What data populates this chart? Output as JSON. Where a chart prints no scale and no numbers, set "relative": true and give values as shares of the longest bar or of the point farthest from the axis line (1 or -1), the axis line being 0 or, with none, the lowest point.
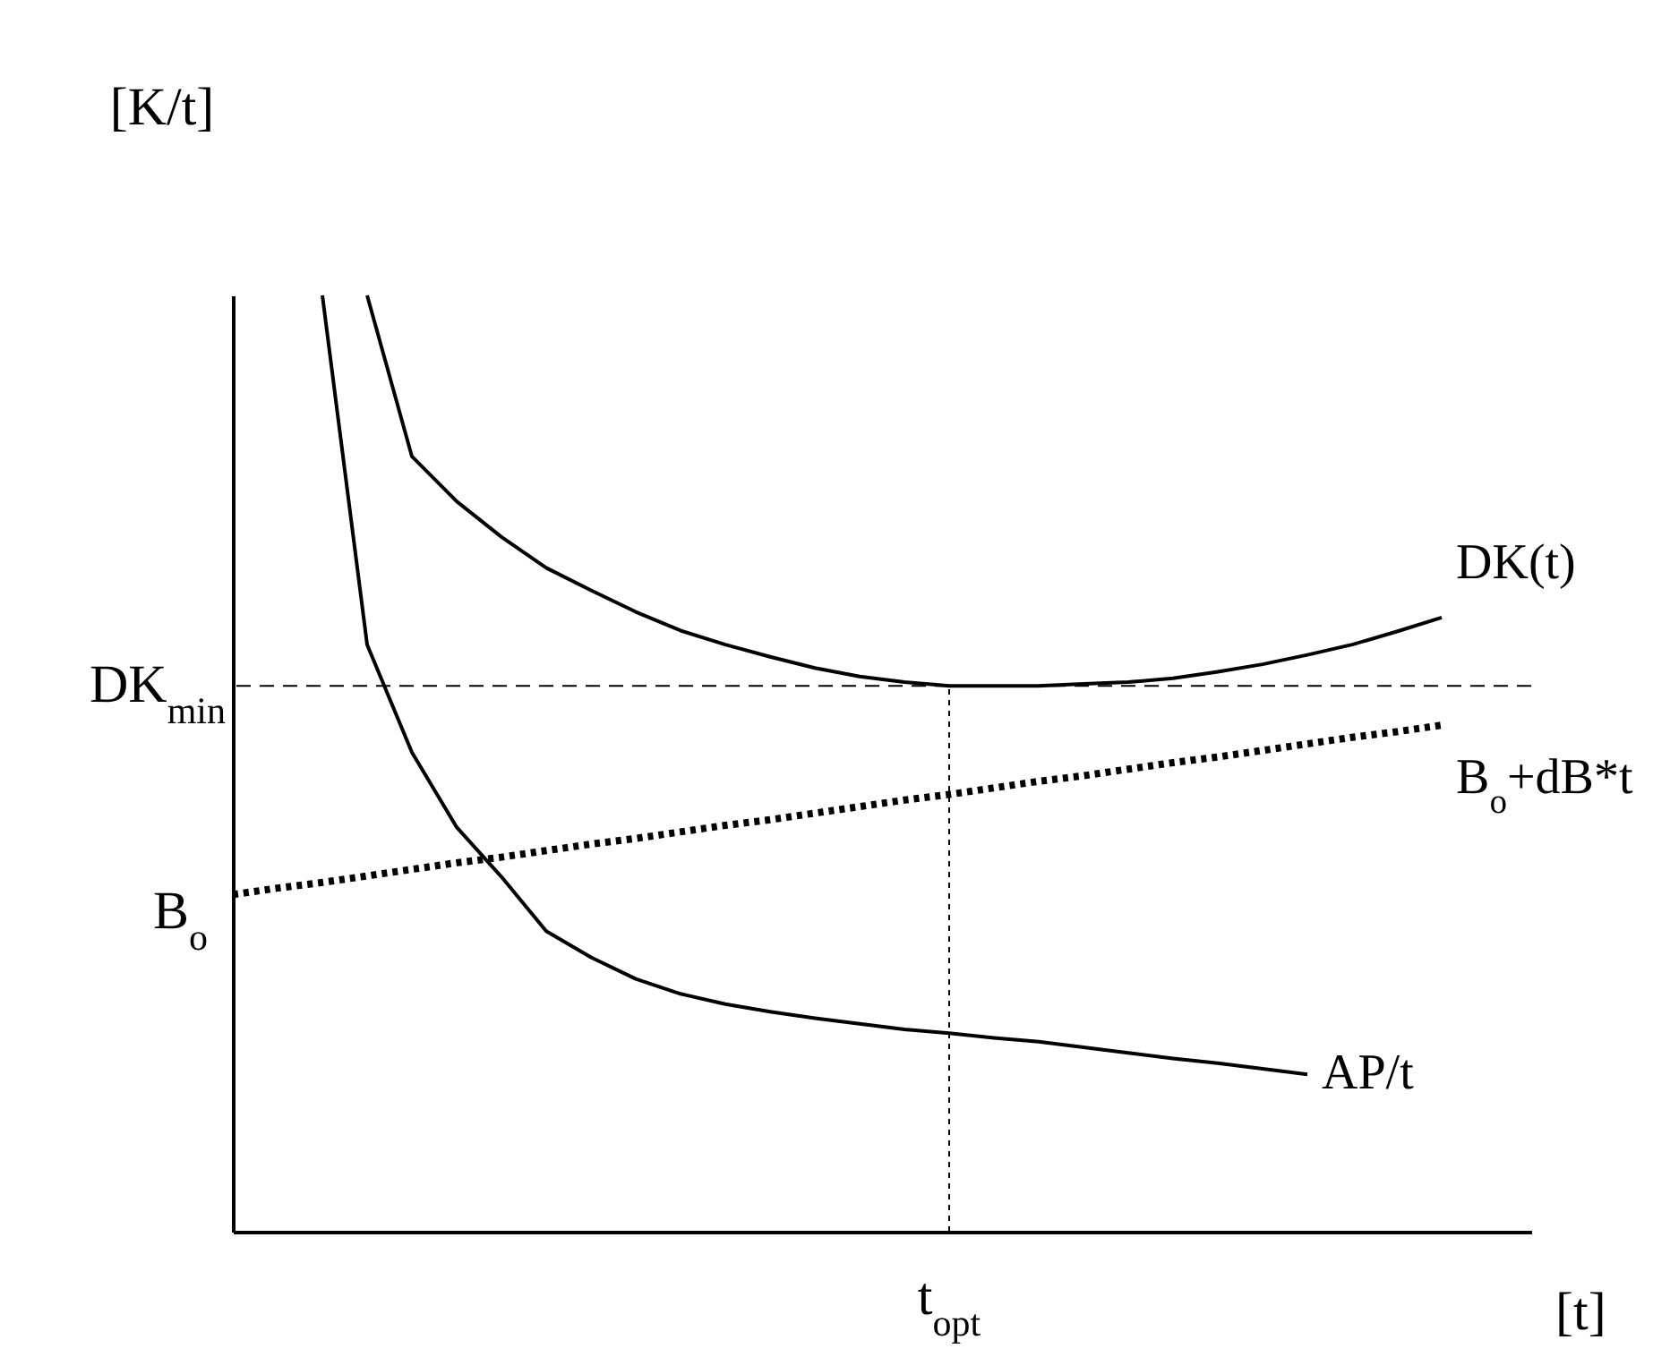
{
  "chart_data": {
    "type": "line",
    "relative": true,
    "xlabel": "[t]",
    "ylabel": "[K/t]",
    "categories": [
      null,
      null,
      null,
      null,
      null,
      null,
      null,
      null,
      null,
      null,
      null,
      null,
      null,
      null,
      null,
      null,
      null,
      null,
      null,
      null,
      null,
      null,
      null,
      null,
      null,
      null,
      null,
      null,
      null,
      null
    ],
    "series": [
      {
        "name": "DK(t)",
        "color": "#000000",
        "line_style": "solid",
        "values": [
          null,
          null,
          null,
          1.0,
          0.828,
          0.78,
          0.742,
          0.709,
          0.685,
          0.662,
          0.642,
          0.627,
          0.614,
          0.602,
          0.593,
          0.587,
          0.583,
          0.583,
          0.583,
          0.585,
          0.587,
          0.591,
          0.598,
          0.606,
          0.616,
          0.627,
          0.641,
          0.656,
          null,
          null
        ]
      },
      {
        "name": "B$_{o}$+dB*t",
        "color": "#000000",
        "line_style": "dotted",
        "values": [
          0.36,
          0.367,
          0.373,
          0.38,
          0.387,
          0.394,
          0.4,
          0.407,
          0.414,
          0.42,
          0.427,
          0.434,
          0.44,
          0.447,
          0.454,
          0.461,
          0.467,
          0.474,
          0.481,
          0.487,
          0.494,
          0.501,
          0.507,
          0.514,
          0.521,
          0.528,
          0.534,
          0.541,
          null,
          null
        ]
      },
      {
        "name": "AP/t",
        "color": "#000000",
        "line_style": "solid",
        "values": [
          null,
          null,
          1.0,
          0.627,
          0.512,
          0.432,
          0.379,
          0.321,
          0.293,
          0.27,
          0.254,
          0.243,
          0.235,
          0.228,
          0.222,
          0.216,
          0.212,
          0.207,
          0.203,
          0.197,
          0.191,
          0.185,
          0.18,
          0.174,
          0.168,
          null,
          null,
          null,
          null,
          null
        ]
      }
    ],
    "ref_lines": [
      {
        "axis": "y",
        "value": 0.583,
        "label": "DK$_{min}$",
        "line_style": "dashed"
      }
    ],
    "annotations": [
      {
        "text": "t$_{opt}$",
        "y": 0.583
      },
      "B$_{o}$"
    ]
  }
}
